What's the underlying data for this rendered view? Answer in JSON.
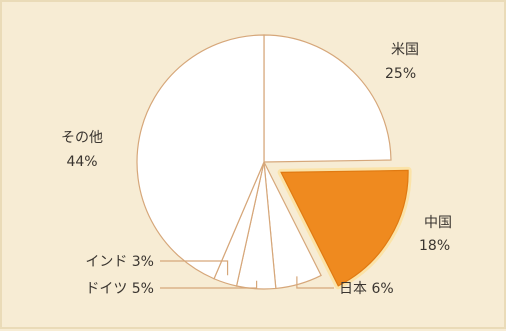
{
  "chart_data": {
    "type": "pie",
    "title": "",
    "slices": [
      {
        "label": "米国",
        "value": 25,
        "text": "25%",
        "color": "#ffffff",
        "exploded": false
      },
      {
        "label": "中国",
        "value": 18,
        "text": "18%",
        "color": "#ef8a1f",
        "exploded": true
      },
      {
        "label": "日本",
        "value": 6,
        "text": "日本 6%",
        "color": "#ffffff",
        "exploded": false
      },
      {
        "label": "ドイツ",
        "value": 5,
        "text": "ドイツ 5%",
        "color": "#ffffff",
        "exploded": false
      },
      {
        "label": "インド",
        "value": 3,
        "text": "インド 3%",
        "color": "#ffffff",
        "exploded": false
      },
      {
        "label": "その他",
        "value": 44,
        "text": "44%",
        "color": "#ffffff",
        "exploded": false
      }
    ],
    "start": "12 o'clock",
    "direction": "clockwise",
    "edge_color": "#d6a77a",
    "background": "#f7ecd4"
  }
}
